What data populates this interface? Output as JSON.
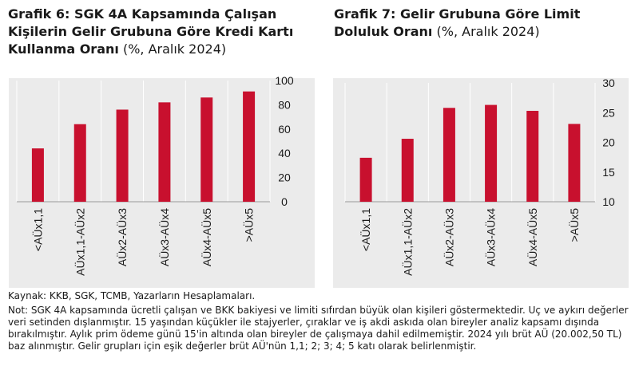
{
  "charts": [
    {
      "title_bold": "Grafik 6: SGK 4A Kapsamında Çalışan Kişilerin Gelir Grubuna Göre Kredi Kartı Kullanma Oranı",
      "title_suffix": "(%, Aralık 2024)"
    },
    {
      "title_bold": "Grafik 7: Gelir Grubuna Göre Limit Doluluk Oranı",
      "title_suffix": "(%, Aralık 2024)"
    }
  ],
  "chart_data": [
    {
      "type": "bar",
      "categories": [
        "<AÜx1,1",
        "AÜx1,1-AÜx2",
        "AÜx2-AÜx3",
        "AÜx3-AÜx4",
        "AÜx4-AÜx5",
        ">AÜx5"
      ],
      "values": [
        44,
        64,
        76,
        82,
        86,
        91
      ],
      "ylim": [
        0,
        100
      ],
      "yticks": [
        0,
        20,
        40,
        60,
        80,
        100
      ],
      "grid": "vertical",
      "color": "#c8102e"
    },
    {
      "type": "bar",
      "categories": [
        "<AÜx1,1",
        "AÜx1,1-AÜx2",
        "AÜx2-AÜx3",
        "AÜx3-AÜx4",
        "AÜx4-AÜx5",
        ">AÜx5"
      ],
      "values": [
        17.4,
        20.6,
        25.8,
        26.3,
        25.3,
        23.1
      ],
      "ylim": [
        10,
        30
      ],
      "yticks": [
        10,
        15,
        20,
        25,
        30
      ],
      "grid": "vertical",
      "color": "#c8102e"
    }
  ],
  "notes": {
    "source": "Kaynak: KKB, SGK, TCMB, Yazarların Hesaplamaları.",
    "note": "Not: SGK 4A kapsamında ücretli çalışan ve BKK bakiyesi ve limiti sıfırdan büyük olan kişileri göstermektedir. Uç ve aykırı değerler veri setinden dışlanmıştır. 15 yaşından küçükler ile stajyerler, çıraklar ve iş akdi askıda olan bireyler analiz kapsamı dışında bırakılmıştır. Aylık prim ödeme günü 15'in altında olan bireyler de çalışmaya dahil edilmemiştir. 2024 yılı brüt AÜ (20.002,50 TL) baz alınmıştır. Gelir grupları için eşik değerler brüt AÜ'nün 1,1; 2; 3; 4; 5 katı olarak belirlenmiştir."
  }
}
